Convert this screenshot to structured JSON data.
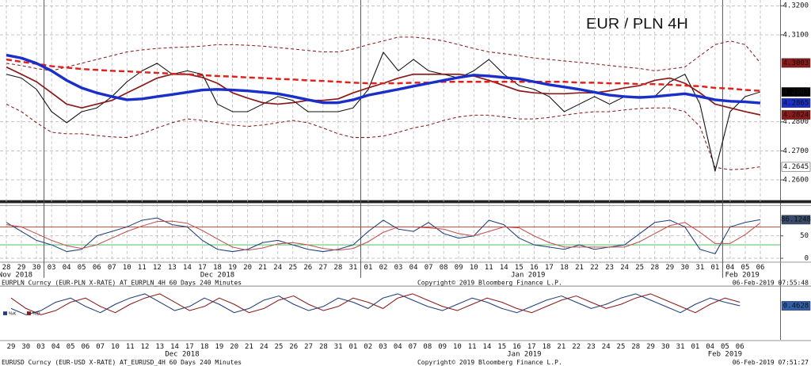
{
  "chart_data": [
    {
      "type": "line",
      "title": "EUR / PLN 4H",
      "title_color": "#e8231f",
      "ylim": [
        4.253,
        4.322
      ],
      "yticks": [
        {
          "value": 4.32,
          "label": "4.3200"
        },
        {
          "value": 4.31,
          "label": "4.3100"
        },
        {
          "value": 4.28,
          "label": "4.2800"
        },
        {
          "value": 4.27,
          "label": "4.2700"
        },
        {
          "value": 4.26,
          "label": "4.2600"
        }
      ],
      "grid": true,
      "series": [
        {
          "color": "#8b1a1a",
          "style": "thin-dashed",
          "tag": "#8b1a1a",
          "values": [
            4.3002,
            4.2994,
            4.2984,
            4.2976,
            4.2989,
            4.3002,
            4.3015,
            4.3028,
            4.3041,
            4.3048,
            4.3053,
            4.3056,
            4.3058,
            4.3061,
            4.3066,
            4.3066,
            4.3064,
            4.3061,
            4.3056,
            4.3051,
            4.3046,
            4.3041,
            4.3041,
            4.3051,
            4.3066,
            4.3079,
            4.3092,
            4.3092,
            4.3087,
            4.3079,
            4.3066,
            4.3053,
            4.3041,
            4.3035,
            4.3028,
            4.302,
            4.3015,
            4.301,
            4.3005,
            4.3,
            4.2994,
            4.2989,
            4.2984,
            4.2976,
            4.2982,
            4.2989,
            4.3028,
            4.3066,
            4.3079,
            4.3066,
            4.3003
          ]
        },
        {
          "color": "#8b1a1a",
          "style": "thin-dashed",
          "tag": "#ffffff",
          "values": [
            4.2861,
            4.2835,
            4.2797,
            4.2764,
            4.2759,
            4.2759,
            4.2753,
            4.2748,
            4.2746,
            4.2759,
            4.2779,
            4.2797,
            4.281,
            4.2805,
            4.2797,
            4.2789,
            4.2784,
            4.2789,
            4.2797,
            4.2805,
            4.2797,
            4.2779,
            4.2759,
            4.2746,
            4.2746,
            4.2751,
            4.2764,
            4.2779,
            4.2789,
            4.2805,
            4.2817,
            4.2823,
            4.2823,
            4.2817,
            4.281,
            4.281,
            4.2815,
            4.2823,
            4.283,
            4.2835,
            4.2835,
            4.2841,
            4.2846,
            4.2848,
            4.2848,
            4.2835,
            4.2784,
            4.2643,
            4.2635,
            4.2638,
            4.2645
          ]
        },
        {
          "color": "#111111",
          "style": "thin",
          "tag": "#000000",
          "values": [
            4.2964,
            4.2951,
            4.2912,
            4.2835,
            4.2797,
            4.2835,
            4.2848,
            4.2887,
            4.2938,
            4.2976,
            4.3002,
            4.2964,
            4.2976,
            4.2964,
            4.2861,
            4.2835,
            4.2835,
            4.2861,
            4.2887,
            4.2874,
            4.2835,
            4.2835,
            4.2835,
            4.2848,
            4.2912,
            4.304,
            4.2976,
            4.3015,
            4.2976,
            4.2964,
            4.2951,
            4.2976,
            4.3015,
            4.2964,
            4.2925,
            4.2912,
            4.2887,
            4.2835,
            4.2861,
            4.2887,
            4.2861,
            4.2887,
            4.2887,
            4.2887,
            4.2938,
            4.2964,
            4.2861,
            4.263,
            4.2835,
            4.2887,
            4.2903
          ]
        },
        {
          "color": "#8b1a1a",
          "style": "solid",
          "tag": "#8b1a1a",
          "values": [
            4.2989,
            4.2964,
            4.2938,
            4.29,
            4.2861,
            4.2848,
            4.2861,
            4.2874,
            4.29,
            4.2925,
            4.2951,
            4.2964,
            4.2964,
            4.2953,
            4.2933,
            4.29,
            4.2882,
            4.2866,
            4.2861,
            4.2866,
            4.2874,
            4.2874,
            4.2879,
            4.29,
            4.2917,
            4.2933,
            4.2951,
            4.2964,
            4.2964,
            4.2964,
            4.2964,
            4.2958,
            4.2943,
            4.2925,
            4.2907,
            4.29,
            4.2897,
            4.2897,
            4.29,
            4.29,
            4.2907,
            4.2917,
            4.2925,
            4.2943,
            4.2951,
            4.2933,
            4.29,
            4.2861,
            4.2848,
            4.2835,
            4.2824
          ]
        },
        {
          "color": "#e0201c",
          "style": "dashed",
          "values": [
            4.3015,
            4.3007,
            4.3,
            4.2992,
            4.2987,
            4.2982,
            4.2979,
            4.2976,
            4.2974,
            4.2971,
            4.2969,
            4.2966,
            4.2964,
            4.2961,
            4.2958,
            4.2956,
            4.2953,
            4.2951,
            4.2948,
            4.2946,
            4.2943,
            4.2941,
            4.2938,
            4.2935,
            4.2933,
            4.2933,
            4.2933,
            4.2935,
            4.2935,
            4.2938,
            4.2938,
            4.2938,
            4.2938,
            4.2938,
            4.2938,
            4.2938,
            4.2938,
            4.2938,
            4.2935,
            4.2935,
            4.2933,
            4.2933,
            4.293,
            4.293,
            4.2928,
            4.2925,
            4.2923,
            4.2917,
            4.2915,
            4.291,
            4.2907
          ]
        },
        {
          "color": "#1a2fc9",
          "style": "thick",
          "tag": "#1a2fc9",
          "values": [
            4.303,
            4.302,
            4.3002,
            4.2976,
            4.2943,
            4.2917,
            4.29,
            4.2887,
            4.2876,
            4.2879,
            4.2887,
            4.2894,
            4.2902,
            4.291,
            4.2912,
            4.291,
            4.2907,
            4.2902,
            4.2897,
            4.2887,
            4.2876,
            4.2866,
            4.2866,
            4.2876,
            4.2892,
            4.2902,
            4.2912,
            4.2923,
            4.2933,
            4.2943,
            4.2953,
            4.2961,
            4.2958,
            4.2953,
            4.2948,
            4.2938,
            4.2928,
            4.292,
            4.2912,
            4.2902,
            4.2892,
            4.2887,
            4.2884,
            4.2887,
            4.2892,
            4.2897,
            4.2887,
            4.2876,
            4.2871,
            4.2869,
            4.2865
          ]
        }
      ]
    },
    {
      "type": "line",
      "ylim": [
        -7,
        113
      ],
      "yticks": [
        0,
        50
      ],
      "grid": true,
      "levels": [
        {
          "value": 70,
          "color": "#c0392b"
        },
        {
          "value": 30,
          "color": "#3cb44b"
        }
      ],
      "categories": [
        "28",
        "29",
        "30",
        "03",
        "04",
        "05",
        "06",
        "07",
        "10",
        "11",
        "12",
        "13",
        "14",
        "17",
        "18",
        "19",
        "20",
        "21",
        "24",
        "25",
        "26",
        "27",
        "28",
        "31",
        "01",
        "02",
        "03",
        "04",
        "07",
        "08",
        "09",
        "10",
        "11",
        "14",
        "15",
        "16",
        "17",
        "18",
        "21",
        "22",
        "23",
        "24",
        "25",
        "28",
        "29",
        "30",
        "31",
        "01",
        "04",
        "05",
        "06"
      ],
      "months": [
        "Nov 2018",
        "Dec 2018",
        "Jan 2019",
        "Feb 2019"
      ],
      "source": "EURPLN Curncy (EUR-PLN X-RATE) AT_EURPLN_4H 60 Days 240 Minutes",
      "copyright": "Copyright© 2019 Bloomberg Finance L.P.",
      "timestamp": "06-Feb-2019 07:55:48",
      "series": [
        {
          "color": "#1f3f7a",
          "style": "thin",
          "tag": "#3a4a6a",
          "values": [
            80,
            60,
            40,
            30,
            15,
            20,
            50,
            60,
            70,
            85,
            90,
            75,
            70,
            40,
            20,
            15,
            20,
            35,
            40,
            30,
            20,
            15,
            20,
            30,
            60,
            85,
            65,
            60,
            80,
            55,
            45,
            50,
            85,
            75,
            45,
            30,
            25,
            20,
            30,
            20,
            25,
            30,
            55,
            80,
            85,
            70,
            20,
            10,
            70,
            80,
            86.1248
          ]
        },
        {
          "color": "#c0504d",
          "style": "thin",
          "values": [
            75,
            70,
            55,
            40,
            28,
            22,
            30,
            45,
            60,
            72,
            82,
            83,
            78,
            62,
            43,
            25,
            18,
            23,
            32,
            35,
            30,
            22,
            18,
            22,
            37,
            58,
            70,
            70,
            68,
            65,
            55,
            50,
            60,
            70,
            68,
            50,
            35,
            25,
            25,
            25,
            25,
            25,
            37,
            55,
            73,
            80,
            58,
            33,
            33,
            53,
            79
          ]
        }
      ]
    },
    {
      "type": "line",
      "ylim": [
        0.3,
        0.55
      ],
      "legend": "left",
      "categories": [
        "29",
        "30",
        "03",
        "04",
        "05",
        "06",
        "07",
        "10",
        "11",
        "12",
        "13",
        "14",
        "17",
        "18",
        "19",
        "20",
        "21",
        "24",
        "25",
        "26",
        "27",
        "28",
        "31",
        "01",
        "02",
        "03",
        "04",
        "07",
        "08",
        "09",
        "10",
        "11",
        "14",
        "15",
        "16",
        "17",
        "18",
        "21",
        "22",
        "23",
        "24",
        "25",
        "28",
        "29",
        "30",
        "31",
        "01",
        "04",
        "05",
        "06"
      ],
      "months": [
        "Dec 2018",
        "Jan 2019",
        "Feb 2019"
      ],
      "source": "EURUSD Curncy (EUR-USD X-RATE) AT_EURUSD_4H 60 Days 240 Minutes",
      "copyright": "Copyright© 2019 Bloomberg Finance L.P.",
      "timestamp": "06-Feb-2019 07:51:27",
      "series": [
        {
          "name": "%K",
          "color": "#1f3f7a",
          "style": "thin",
          "tag": "#2f5fa8",
          "values": [
            0.45,
            0.42,
            0.44,
            0.48,
            0.5,
            0.46,
            0.43,
            0.47,
            0.5,
            0.52,
            0.48,
            0.44,
            0.46,
            0.5,
            0.47,
            0.43,
            0.45,
            0.49,
            0.51,
            0.47,
            0.44,
            0.46,
            0.5,
            0.48,
            0.45,
            0.5,
            0.52,
            0.49,
            0.46,
            0.44,
            0.47,
            0.5,
            0.48,
            0.45,
            0.43,
            0.46,
            0.49,
            0.51,
            0.48,
            0.45,
            0.47,
            0.5,
            0.52,
            0.49,
            0.46,
            0.43,
            0.47,
            0.5,
            0.48,
            0.4628
          ]
        },
        {
          "name": "%D",
          "color": "#8b1a1a",
          "style": "thin",
          "values": [
            0.5,
            0.45,
            0.42,
            0.44,
            0.48,
            0.5,
            0.46,
            0.43,
            0.47,
            0.5,
            0.52,
            0.48,
            0.44,
            0.46,
            0.5,
            0.47,
            0.43,
            0.45,
            0.49,
            0.51,
            0.47,
            0.44,
            0.46,
            0.5,
            0.48,
            0.45,
            0.5,
            0.52,
            0.49,
            0.46,
            0.44,
            0.47,
            0.5,
            0.48,
            0.45,
            0.43,
            0.46,
            0.49,
            0.51,
            0.48,
            0.45,
            0.47,
            0.5,
            0.52,
            0.49,
            0.46,
            0.43,
            0.47,
            0.5,
            0.48
          ]
        }
      ]
    }
  ]
}
